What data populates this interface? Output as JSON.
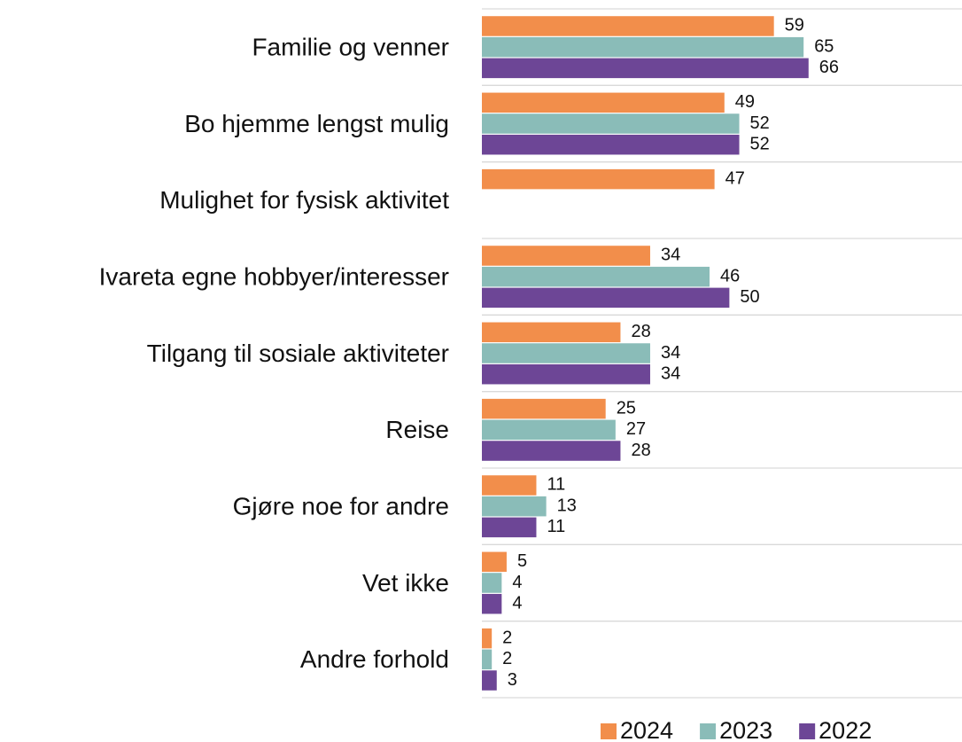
{
  "chart_data": {
    "type": "hbar",
    "categories": [
      "Familie og venner",
      "Bo hjemme lengst mulig",
      "Mulighet for fysisk aktivitet",
      "Ivareta egne hobbyer/interesser",
      "Tilgang til sosiale aktiviteter",
      "Reise",
      "Gjøre noe for andre",
      "Vet ikke",
      "Andre forhold"
    ],
    "series": [
      {
        "name": "2024",
        "color": "#f28e4b",
        "values": [
          59,
          49,
          47,
          34,
          28,
          25,
          11,
          5,
          2
        ]
      },
      {
        "name": "2023",
        "color": "#8abcb8",
        "values": [
          65,
          52,
          null,
          46,
          34,
          27,
          13,
          4,
          2
        ]
      },
      {
        "name": "2022",
        "color": "#6d4696",
        "values": [
          66,
          52,
          null,
          50,
          34,
          28,
          11,
          4,
          3
        ]
      }
    ],
    "xlim": [
      0,
      97
    ],
    "grid": true,
    "legend": "bottom"
  }
}
